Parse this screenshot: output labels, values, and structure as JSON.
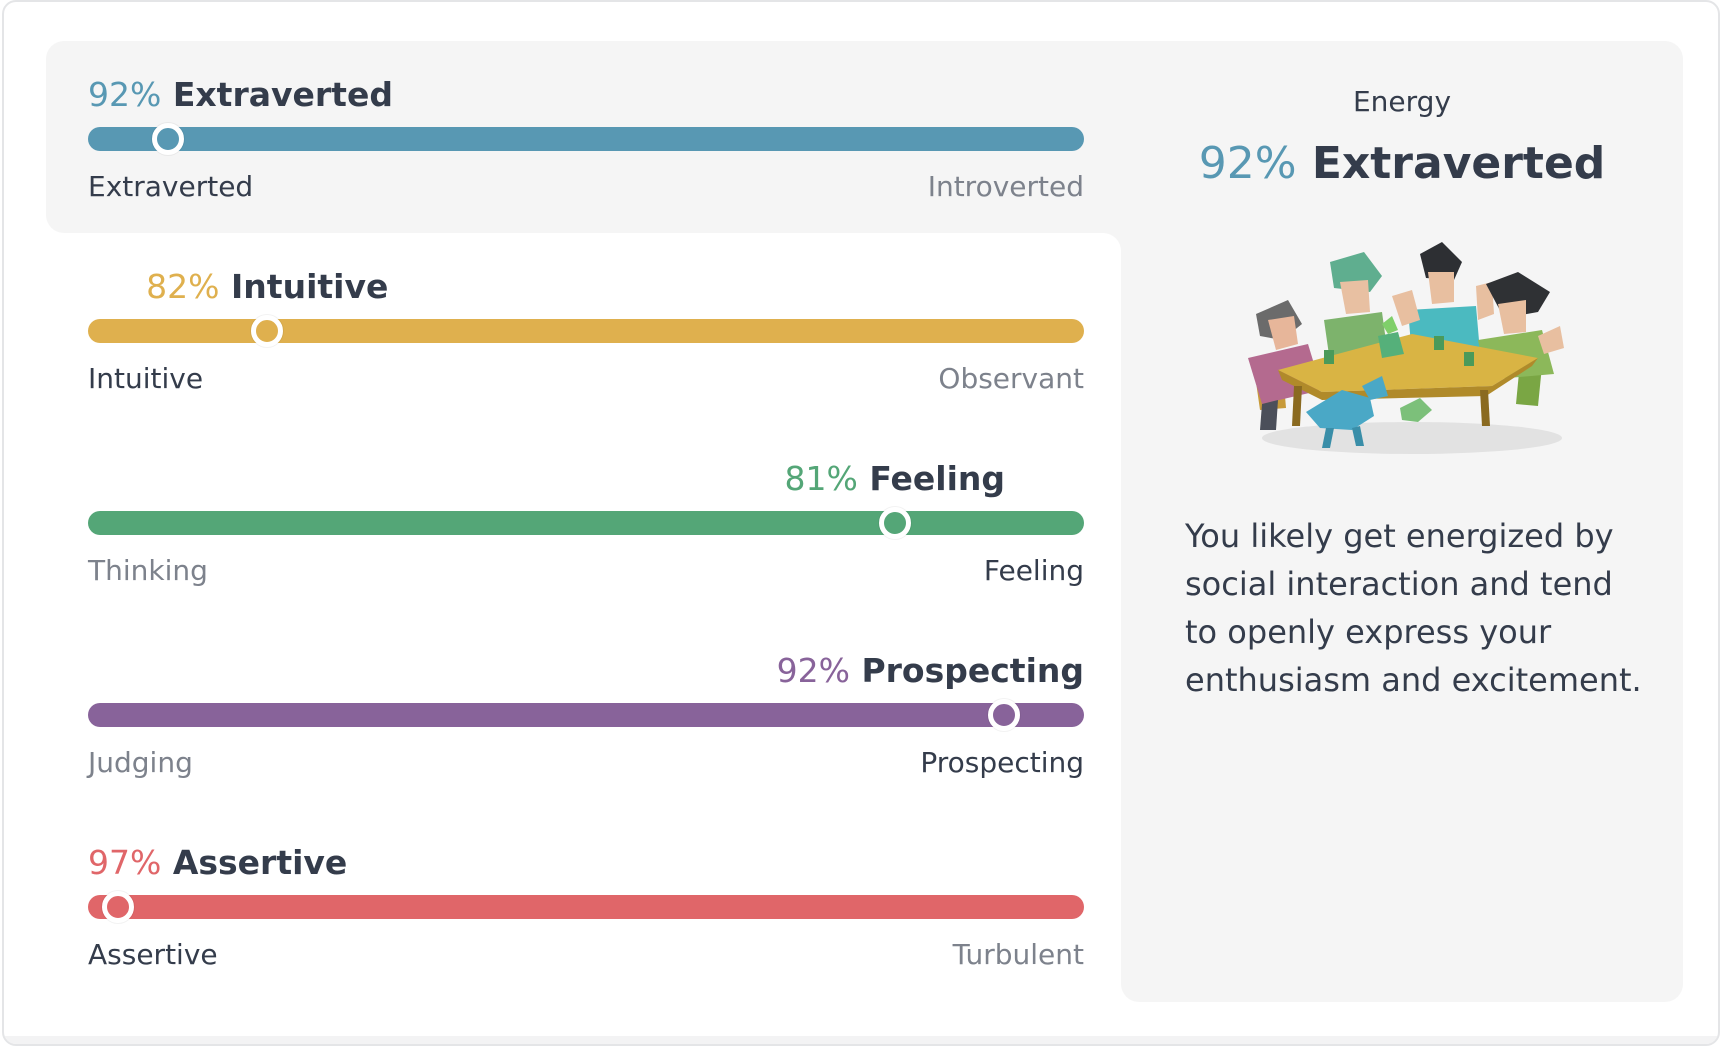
{
  "colors": {
    "energy": "#5898b3",
    "mind": "#dfb04e",
    "nature": "#54a677",
    "tactics": "#88639a",
    "identity": "#e06669",
    "panel_bg": "#f5f5f5",
    "text_dark": "#343c4b",
    "text_muted": "#7d828c"
  },
  "traits": [
    {
      "id": "energy",
      "percent_label": "92%",
      "name": "Extraverted",
      "left_pole": "Extraverted",
      "right_pole": "Introverted",
      "dominant": "left",
      "percent": 92,
      "color": "#5898b3",
      "active": true
    },
    {
      "id": "mind",
      "percent_label": "82%",
      "name": "Intuitive",
      "left_pole": "Intuitive",
      "right_pole": "Observant",
      "dominant": "left",
      "percent": 82,
      "color": "#dfb04e",
      "active": false
    },
    {
      "id": "nature",
      "percent_label": "81%",
      "name": "Feeling",
      "left_pole": "Thinking",
      "right_pole": "Feeling",
      "dominant": "right",
      "percent": 81,
      "color": "#54a677",
      "active": false
    },
    {
      "id": "tactics",
      "percent_label": "92%",
      "name": "Prospecting",
      "left_pole": "Judging",
      "right_pole": "Prospecting",
      "dominant": "right",
      "percent": 92,
      "color": "#88639a",
      "active": false
    },
    {
      "id": "identity",
      "percent_label": "97%",
      "name": "Assertive",
      "left_pole": "Assertive",
      "right_pole": "Turbulent",
      "dominant": "left",
      "percent": 97,
      "color": "#e06669",
      "active": false
    }
  ],
  "detail": {
    "aspect": "Energy",
    "percent_label": "92%",
    "name": "Extraverted",
    "color": "#5898b3",
    "illustration_icon": "extravert-group-illustration",
    "description": "You likely get energized by social interaction and tend to openly express your enthusiasm and excitement."
  }
}
